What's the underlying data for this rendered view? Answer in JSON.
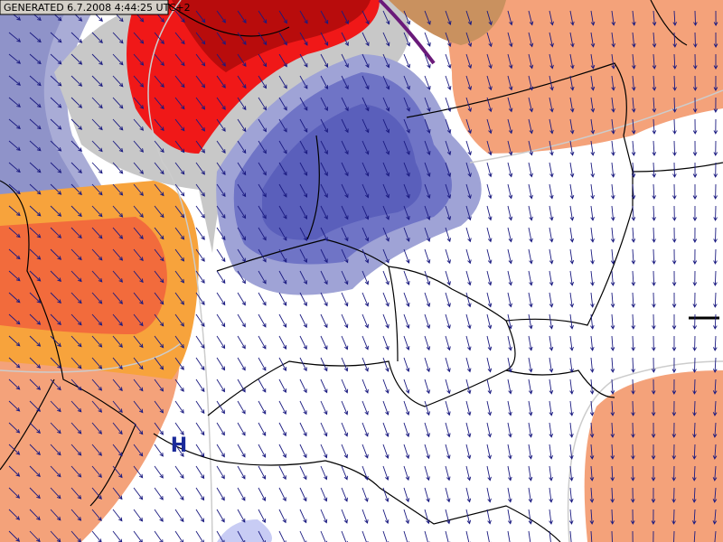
{
  "header": {
    "generated": "GENERATED 6.7.2008 4:44:25 UTC+2"
  },
  "map": {
    "pressure_center": "H"
  }
}
